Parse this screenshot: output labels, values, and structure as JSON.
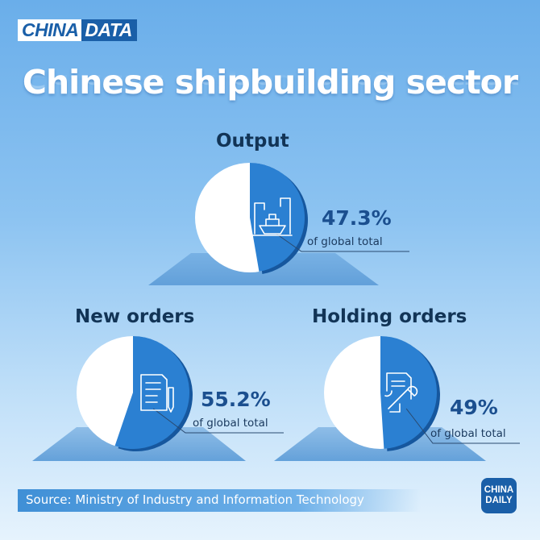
{
  "brand": {
    "part1": "CHINA",
    "part2": "DATA"
  },
  "title": "Chinese shipbuilding sector",
  "chart_data": {
    "type": "pie",
    "charts": [
      {
        "label": "Output",
        "value": 47.3,
        "value_label": "47.3%",
        "note": "of global total",
        "icon": "ship-crane-icon"
      },
      {
        "label": "New orders",
        "value": 55.2,
        "value_label": "55.2%",
        "note": "of global total",
        "icon": "document-pen-icon"
      },
      {
        "label": "Holding orders",
        "value": 49,
        "value_label": "49%",
        "note": "of global total",
        "icon": "document-wrench-icon"
      }
    ]
  },
  "colors": {
    "slice": "#2b80d2",
    "slice_dark": "#16579e",
    "remainder": "#ffffff",
    "shadow": "#5e9dd8"
  },
  "source": "Source: Ministry of Industry and Information Technology",
  "logo": {
    "line1": "CHINA",
    "line2": "DAILY"
  }
}
